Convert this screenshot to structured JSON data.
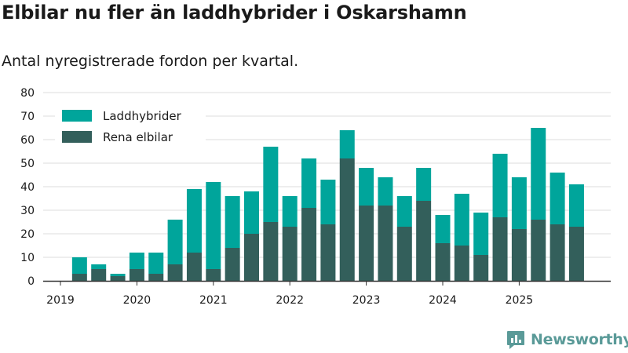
{
  "colors": {
    "hybrid": "#00a59b",
    "electric": "#335f5b",
    "grid": "#dddddd",
    "axis": "#333333",
    "logo": "#5a9a98"
  },
  "brand": {
    "name": "Newsworthy"
  },
  "chart_data": {
    "type": "bar",
    "stacked": true,
    "title": "Elbilar nu fler än laddhybrider i Oskarshamn",
    "subtitle": "Antal nyregistrerade fordon per kvartal.",
    "xlabel": "",
    "ylabel": "",
    "ylim": [
      0,
      80
    ],
    "yticks": [
      0,
      10,
      20,
      30,
      40,
      50,
      60,
      70,
      80
    ],
    "grid": true,
    "legend_position": "top-left",
    "year_labels": [
      "2019",
      "2020",
      "2021",
      "2022",
      "2023",
      "2024",
      "2025"
    ],
    "categories": [
      "2019 Q1",
      "2019 Q2",
      "2019 Q3",
      "2019 Q4",
      "2020 Q1",
      "2020 Q2",
      "2020 Q3",
      "2020 Q4",
      "2021 Q1",
      "2021 Q2",
      "2021 Q3",
      "2021 Q4",
      "2022 Q1",
      "2022 Q2",
      "2022 Q3",
      "2022 Q4",
      "2023 Q1",
      "2023 Q2",
      "2023 Q3",
      "2023 Q4",
      "2024 Q1",
      "2024 Q2",
      "2024 Q3",
      "2024 Q4",
      "2025 Q1",
      "2025 Q2",
      "2025 Q3",
      "2025 Q4"
    ],
    "series": [
      {
        "name": "Rena elbilar",
        "values": [
          0,
          3,
          5,
          2,
          5,
          3,
          7,
          12,
          5,
          14,
          20,
          25,
          23,
          31,
          24,
          52,
          32,
          32,
          23,
          34,
          16,
          15,
          11,
          27,
          22,
          26,
          24,
          23
        ]
      },
      {
        "name": "Laddhybrider",
        "values": [
          0,
          7,
          2,
          1,
          7,
          9,
          19,
          27,
          37,
          22,
          18,
          32,
          13,
          21,
          19,
          12,
          16,
          12,
          13,
          14,
          12,
          22,
          18,
          27,
          22,
          39,
          22,
          18
        ]
      }
    ]
  }
}
